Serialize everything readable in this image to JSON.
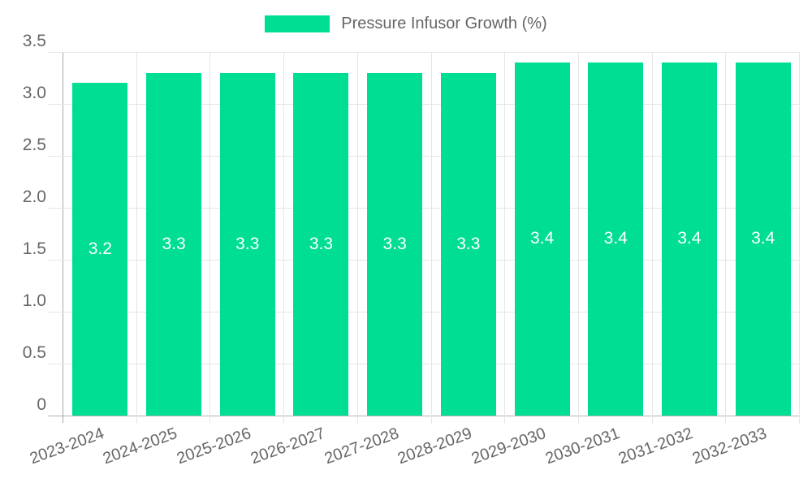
{
  "legend": {
    "label": "Pressure Infusor Growth (%)",
    "swatch_color": "#00de94"
  },
  "chart_data": {
    "type": "bar",
    "title": "Pressure Infusor Growth (%)",
    "series_name": "Pressure Infusor Growth (%)",
    "categories": [
      "2023-2024",
      "2024-2025",
      "2025-2026",
      "2026-2027",
      "2027-2028",
      "2028-2029",
      "2029-2030",
      "2030-2031",
      "2031-2032",
      "2032-2033"
    ],
    "values": [
      3.2,
      3.3,
      3.3,
      3.3,
      3.3,
      3.3,
      3.4,
      3.4,
      3.4,
      3.4
    ],
    "value_labels": [
      "3.2",
      "3.3",
      "3.3",
      "3.3",
      "3.3",
      "3.3",
      "3.4",
      "3.4",
      "3.4",
      "3.4"
    ],
    "ylim": [
      0,
      3.5
    ],
    "ytick_labels": [
      "0",
      "0.5",
      "1.0",
      "1.5",
      "2.0",
      "2.5",
      "3.0",
      "3.5"
    ],
    "ytick_values": [
      0,
      0.5,
      1.0,
      1.5,
      2.0,
      2.5,
      3.0,
      3.5
    ],
    "grid": true,
    "legend_position": "top",
    "bar_color": "#00de94",
    "value_label_color": "#ffffff",
    "axis_text_color": "#666666",
    "grid_color": "#e5e5e5",
    "axis_line_color": "#b3b3b3",
    "background_color": "#ffffff"
  }
}
